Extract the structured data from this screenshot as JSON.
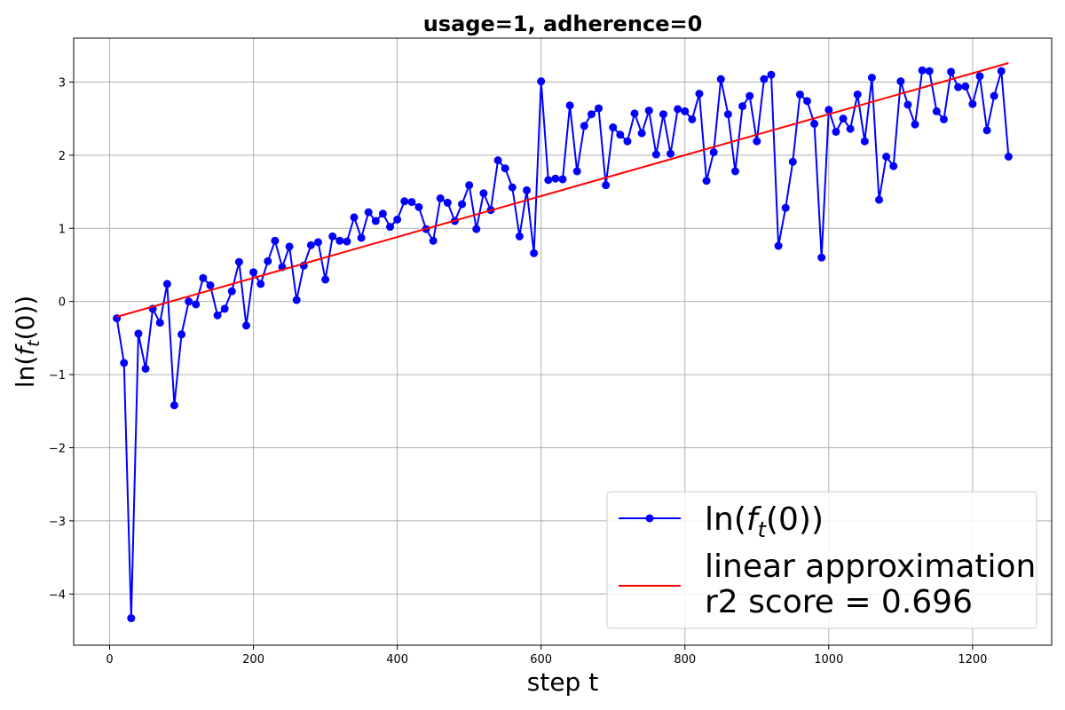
{
  "chart_data": {
    "type": "line",
    "title": "usage=1, adherence=0",
    "xlabel": "step t",
    "ylabel": "ln(f_t(0))",
    "xlim": [
      -50,
      1310
    ],
    "ylim": [
      -4.7,
      3.6
    ],
    "xticks": [
      0,
      200,
      400,
      600,
      800,
      1000,
      1200
    ],
    "yticks": [
      -4,
      -3,
      -2,
      -1,
      0,
      1,
      2,
      3
    ],
    "ytick_labels": [
      "−4",
      "−3",
      "−2",
      "−1",
      "0",
      "1",
      "2",
      "3"
    ],
    "grid": true,
    "legend_position": "bottom-right",
    "series": [
      {
        "name": "ln(f_t(0))",
        "style": "line-with-markers",
        "color": "#0000ff",
        "x": [
          10,
          20,
          30,
          40,
          50,
          60,
          70,
          80,
          90,
          100,
          110,
          120,
          130,
          140,
          150,
          160,
          170,
          180,
          190,
          200,
          210,
          220,
          230,
          240,
          250,
          260,
          270,
          280,
          290,
          300,
          310,
          320,
          330,
          340,
          350,
          360,
          370,
          380,
          390,
          400,
          410,
          420,
          430,
          440,
          450,
          460,
          470,
          480,
          490,
          500,
          510,
          520,
          530,
          540,
          550,
          560,
          570,
          580,
          590,
          600,
          610,
          620,
          630,
          640,
          650,
          660,
          670,
          680,
          690,
          700,
          710,
          720,
          730,
          740,
          750,
          760,
          770,
          780,
          790,
          800,
          810,
          820,
          830,
          840,
          850,
          860,
          870,
          880,
          890,
          900,
          910,
          920,
          930,
          940,
          950,
          960,
          970,
          980,
          990,
          1000,
          1010,
          1020,
          1030,
          1040,
          1050,
          1060,
          1070,
          1080,
          1090,
          1100,
          1110,
          1120,
          1130,
          1140,
          1150,
          1160,
          1170,
          1180,
          1190,
          1200,
          1210,
          1220,
          1230,
          1240,
          1250
        ],
        "y": [
          -0.23,
          -0.84,
          -4.33,
          -0.44,
          -0.92,
          -0.1,
          -0.29,
          0.24,
          -1.42,
          -0.45,
          0.0,
          -0.04,
          0.32,
          0.22,
          -0.19,
          -0.1,
          0.14,
          0.54,
          -0.33,
          0.4,
          0.24,
          0.55,
          0.83,
          0.47,
          0.75,
          0.02,
          0.49,
          0.77,
          0.81,
          0.3,
          0.89,
          0.83,
          0.82,
          1.15,
          0.87,
          1.22,
          1.1,
          1.2,
          1.02,
          1.12,
          1.37,
          1.36,
          1.29,
          0.99,
          0.83,
          1.41,
          1.35,
          1.1,
          1.33,
          1.59,
          0.99,
          1.48,
          1.25,
          1.93,
          1.82,
          1.56,
          0.89,
          1.52,
          0.66,
          3.01,
          1.66,
          1.68,
          1.67,
          2.68,
          1.78,
          2.4,
          2.56,
          2.64,
          1.59,
          2.38,
          2.28,
          2.19,
          2.57,
          2.3,
          2.61,
          2.01,
          2.56,
          2.02,
          2.63,
          2.6,
          2.49,
          2.84,
          1.65,
          2.04,
          3.04,
          2.56,
          1.78,
          2.67,
          2.81,
          2.19,
          3.04,
          3.1,
          0.76,
          1.28,
          1.91,
          2.83,
          2.74,
          2.43,
          0.6,
          2.62,
          2.32,
          2.5,
          2.36,
          2.83,
          2.19,
          3.06,
          1.39,
          1.98,
          1.85,
          3.01,
          2.69,
          2.42,
          3.16,
          3.15,
          2.6,
          2.49,
          3.14,
          2.93,
          2.94,
          2.7,
          3.08,
          2.34,
          2.81,
          3.15,
          1.98
        ]
      },
      {
        "name": "linear approximation\nr2 score =  0.696",
        "style": "line",
        "color": "#ff0000",
        "x": [
          10,
          1250
        ],
        "y": [
          -0.21,
          3.26
        ]
      }
    ]
  },
  "legend": {
    "entries": [
      "ln(f_t(0))",
      "linear approximation",
      "r2 score =  0.696"
    ]
  },
  "colors": {
    "grid": "#b0b0b0",
    "frame": "#000000",
    "series_main": "#0000ff",
    "series_fit": "#ff0000"
  }
}
